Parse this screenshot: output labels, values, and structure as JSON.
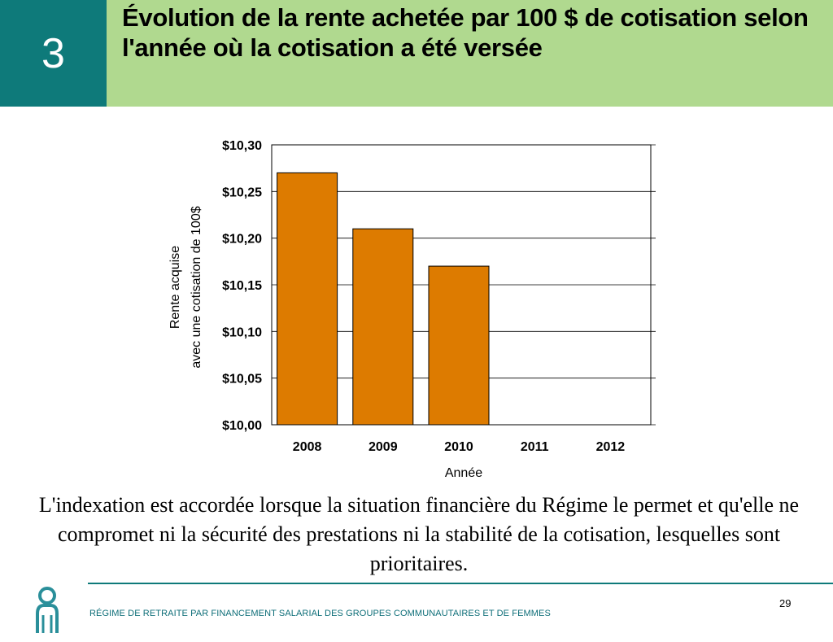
{
  "slide": {
    "number": "3",
    "title": "Évolution de la rente achetée par 100 $ de cotisation  selon l'année où la cotisation a été versée",
    "caption": "L'indexation est accordée lorsque la situation financière du Régime le permet et qu'elle ne compromet ni la sécurité des prestations ni la stabilité de la cotisation, lesquelles sont prioritaires.",
    "footer": "RÉGIME DE RETRAITE PAR FINANCEMENT SALARIAL DES GROUPES COMMUNAUTAIRES ET DE FEMMES",
    "page_number": "29"
  },
  "colors": {
    "header_number_bg": "#0e7a7a",
    "header_bar_bg": "#b0d98f",
    "bar_fill": "#dd7b00",
    "footer_text": "#0e6e78"
  },
  "chart_data": {
    "type": "bar",
    "categories": [
      "2008",
      "2009",
      "2010",
      "2011",
      "2012"
    ],
    "values": [
      10.27,
      10.21,
      10.17,
      null,
      null
    ],
    "xlabel": "Année",
    "ylabel_lines": [
      "Rente acquise",
      "avec une cotisation de 100$"
    ],
    "ylim": [
      10.0,
      10.3
    ],
    "yticks": [
      "$10,00",
      "$10,05",
      "$10,10",
      "$10,15",
      "$10,20",
      "$10,25",
      "$10,30"
    ],
    "grid": true
  }
}
